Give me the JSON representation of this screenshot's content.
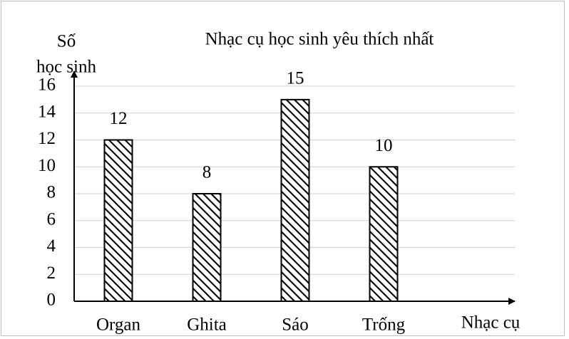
{
  "chart_data": {
    "type": "bar",
    "title": "Nhạc cụ học sinh yêu thích nhất",
    "y_label": [
      "Số",
      "học sinh"
    ],
    "x_label": "Nhạc cụ",
    "categories": [
      "Organ",
      "Ghita",
      "Sáo",
      "Trống"
    ],
    "values": [
      12,
      8,
      15,
      10
    ],
    "color": "#000000",
    "ylim": [
      0,
      16
    ],
    "yticks": [
      0,
      2,
      4,
      6,
      8,
      10,
      12,
      14,
      16
    ],
    "grid": true
  }
}
